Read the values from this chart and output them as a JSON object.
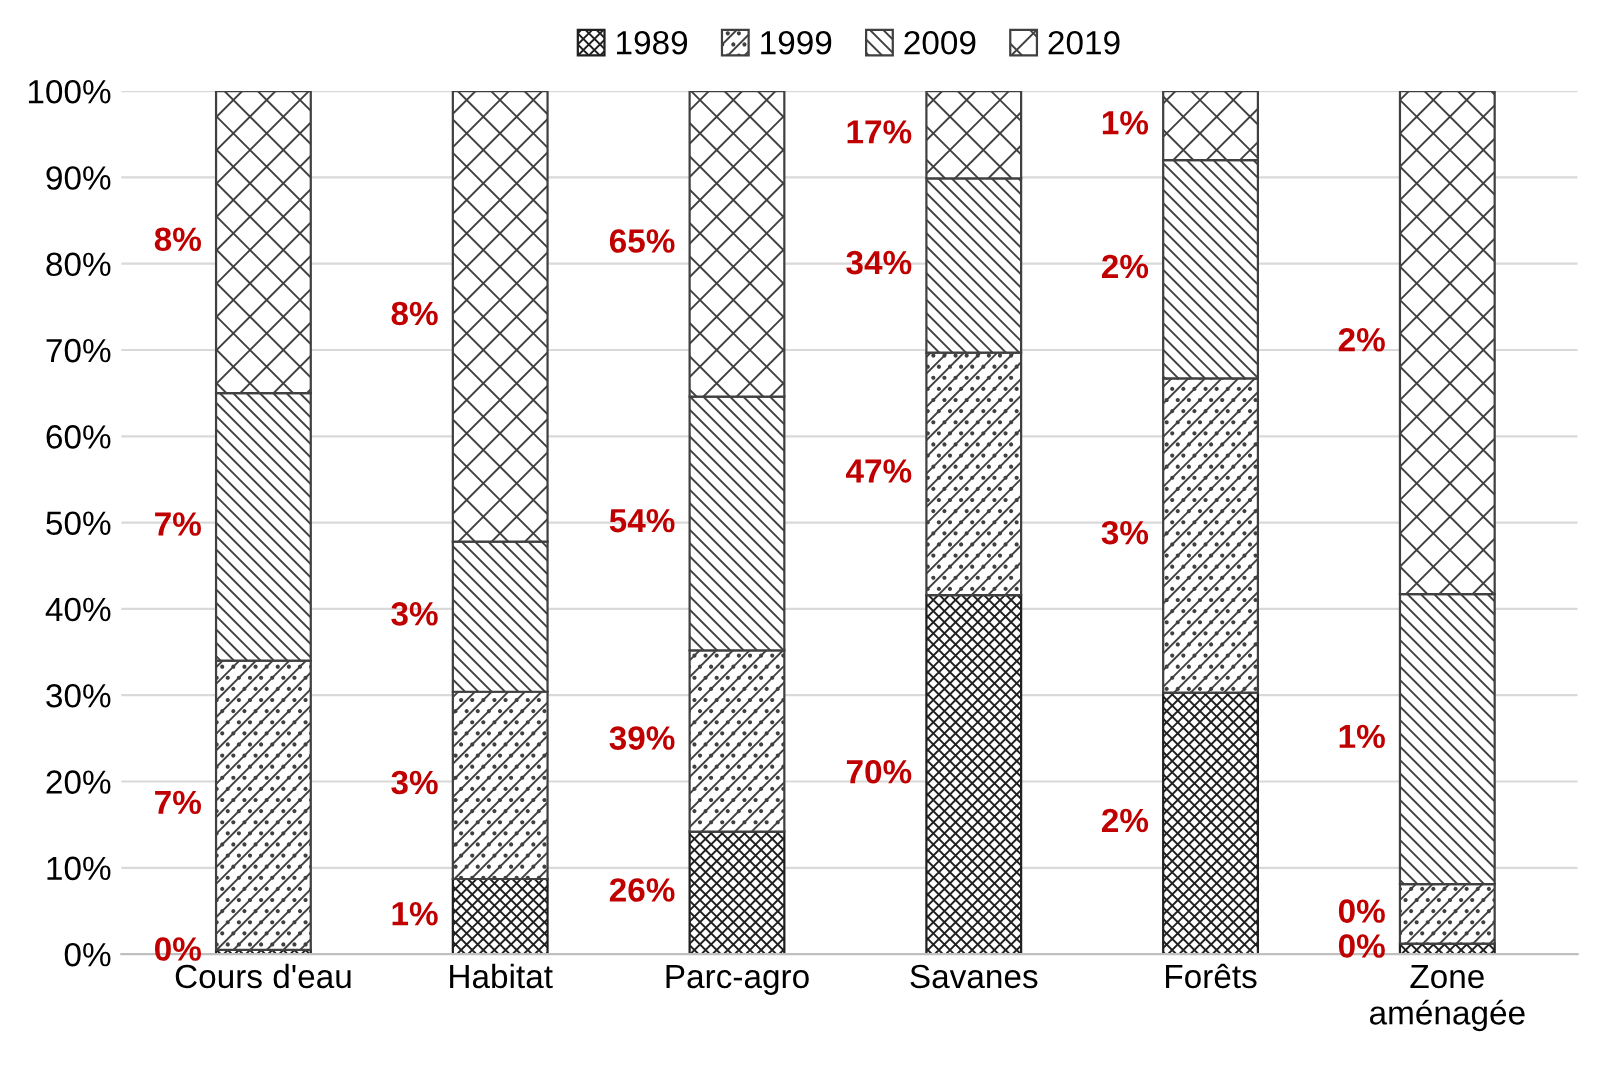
{
  "chart_data": {
    "type": "bar",
    "stacked": true,
    "categories": [
      "Cours d'eau",
      "Habitat",
      "Parc-agro",
      "Savanes",
      "Forêts",
      "Zone\naménagée"
    ],
    "series": [
      {
        "name": "1989",
        "color": "#202020",
        "values": [
          0.5,
          8.7,
          14.2,
          41.6,
          30.3,
          1.2
        ]
      },
      {
        "name": "1999",
        "color": "#404040",
        "values": [
          33.5,
          21.7,
          21.0,
          28.1,
          36.4,
          6.9
        ]
      },
      {
        "name": "2009",
        "color": "#404040",
        "values": [
          31.0,
          17.4,
          29.4,
          20.2,
          25.3,
          33.6
        ]
      },
      {
        "name": "2019",
        "color": "#404040",
        "values": [
          35.0,
          52.2,
          35.4,
          10.1,
          8.0,
          58.3
        ]
      }
    ],
    "ylim": [
      0,
      100
    ],
    "yticks": [
      {
        "value": 0,
        "label": "0%"
      },
      {
        "value": 10,
        "label": "10%"
      },
      {
        "value": 20,
        "label": "20%"
      },
      {
        "value": 30,
        "label": "30%"
      },
      {
        "value": 40,
        "label": "40%"
      },
      {
        "value": 50,
        "label": "50%"
      },
      {
        "value": 60,
        "label": "60%"
      },
      {
        "value": 70,
        "label": "70%"
      },
      {
        "value": 80,
        "label": "80%"
      },
      {
        "value": 90,
        "label": "90%"
      },
      {
        "value": 100,
        "label": "100%"
      }
    ],
    "grid": "y",
    "legend": "top",
    "annotations": [
      "0%",
      "7%",
      "7%",
      "8%",
      "1%",
      "3%",
      "3%",
      "8%",
      "26%",
      "39%",
      "54%",
      "65%",
      "70%",
      "47%",
      "34%",
      "17%",
      "2%",
      "3%",
      "2%",
      "1%",
      "0%",
      "0%",
      "1%",
      "2%"
    ]
  }
}
